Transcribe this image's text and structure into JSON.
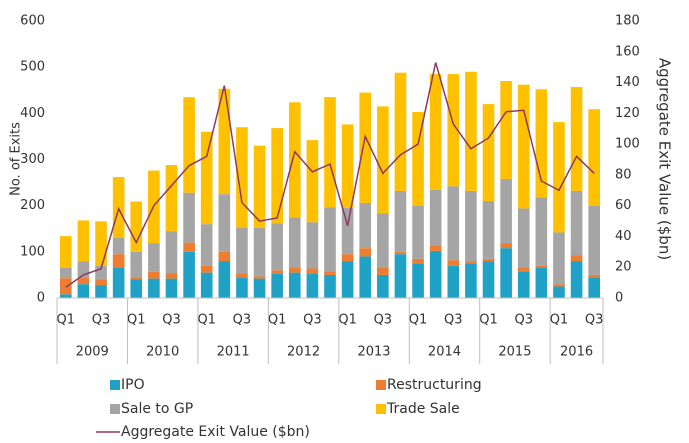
{
  "chart_data": {
    "type": "bar",
    "stacked": true,
    "categories": [
      "Q1",
      null,
      "Q3",
      null,
      "Q1",
      null,
      "Q3",
      null,
      "Q1",
      null,
      "Q3",
      null,
      "Q1",
      null,
      "Q3",
      null,
      "Q1",
      null,
      "Q3",
      null,
      "Q1",
      null,
      "Q3",
      null,
      "Q1",
      null,
      "Q3",
      null,
      "Q1",
      null,
      "Q3"
    ],
    "years": [
      "2009",
      "2010",
      "2011",
      "2012",
      "2013",
      "2014",
      "2015",
      "2016"
    ],
    "y_label": "No. of Exits",
    "y2_label": "Aggregate Exit Value ($bn)",
    "ylim": [
      0,
      600
    ],
    "yticks": [
      0,
      100,
      200,
      300,
      400,
      500,
      600
    ],
    "y2lim": [
      0,
      180
    ],
    "y2ticks": [
      0,
      20,
      40,
      60,
      80,
      100,
      120,
      140,
      160,
      180
    ],
    "grid": false,
    "legend": "bottom",
    "series": [
      {
        "name": "IPO",
        "color": "#1fa2c6",
        "values": [
          8,
          30,
          28,
          65,
          40,
          42,
          42,
          100,
          55,
          80,
          45,
          42,
          52,
          55,
          52,
          50,
          80,
          90,
          50,
          95,
          75,
          102,
          70,
          75,
          80,
          108,
          58,
          65,
          25,
          80,
          45
        ]
      },
      {
        "name": "Restructuring",
        "color": "#ed7d31",
        "values": [
          35,
          15,
          12,
          30,
          5,
          15,
          12,
          20,
          15,
          20,
          8,
          5,
          8,
          10,
          12,
          8,
          15,
          18,
          15,
          5,
          10,
          12,
          12,
          5,
          5,
          10,
          8,
          5,
          5,
          12,
          5
        ]
      },
      {
        "name": "Sale to GP",
        "color": "#a5a5a5",
        "values": [
          22,
          35,
          30,
          35,
          55,
          62,
          90,
          108,
          90,
          125,
          100,
          105,
          102,
          110,
          100,
          138,
          100,
          98,
          118,
          132,
          115,
          120,
          160,
          152,
          125,
          140,
          128,
          148,
          112,
          140,
          150
        ]
      },
      {
        "name": "Trade Sale",
        "color": "#ffc000",
        "values": [
          69,
          88,
          96,
          132,
          109,
          157,
          144,
          207,
          200,
          228,
          217,
          178,
          206,
          249,
          178,
          239,
          181,
          239,
          232,
          256,
          203,
          251,
          243,
          258,
          210,
          212,
          268,
          234,
          239,
          225,
          209
        ]
      },
      {
        "name": "Aggregate Exit Value ($bn)",
        "color": "#8b3a62",
        "type": "line",
        "axis": "y2",
        "values": [
          7,
          15,
          19,
          58,
          36,
          60,
          73,
          86,
          92,
          138,
          62,
          50,
          52,
          95,
          82,
          87,
          47,
          105,
          81,
          93,
          100,
          153,
          113,
          97,
          104,
          121,
          122,
          76,
          70,
          92,
          81
        ]
      }
    ]
  }
}
